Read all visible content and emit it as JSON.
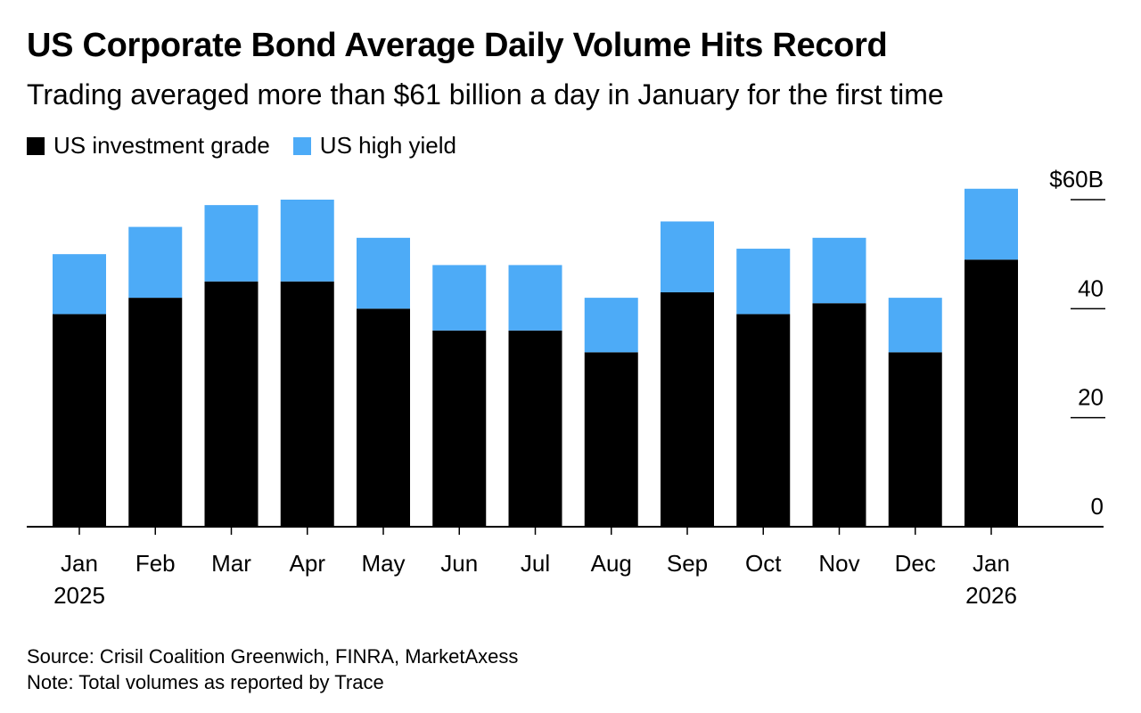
{
  "header": {
    "title": "US Corporate Bond Average Daily Volume Hits Record",
    "subtitle": "Trading averaged more than $61 billion a day in January for the first time"
  },
  "legend": [
    {
      "label": "US investment grade",
      "color": "#000000"
    },
    {
      "label": "US high yield",
      "color": "#4dabf7"
    }
  ],
  "chart_data": {
    "type": "bar",
    "stacked": true,
    "categories": [
      "Jan 2025",
      "Feb",
      "Mar",
      "Apr",
      "May",
      "Jun",
      "Jul",
      "Aug",
      "Sep",
      "Oct",
      "Nov",
      "Dec",
      "Jan 2026"
    ],
    "category_lines": [
      [
        "Jan",
        "2025"
      ],
      [
        "Feb"
      ],
      [
        "Mar"
      ],
      [
        "Apr"
      ],
      [
        "May"
      ],
      [
        "Jun"
      ],
      [
        "Jul"
      ],
      [
        "Aug"
      ],
      [
        "Sep"
      ],
      [
        "Oct"
      ],
      [
        "Nov"
      ],
      [
        "Dec"
      ],
      [
        "Jan",
        "2026"
      ]
    ],
    "series": [
      {
        "name": "US investment grade",
        "color": "#000000",
        "values": [
          39,
          42,
          45,
          45,
          40,
          36,
          36,
          32,
          43,
          39,
          41,
          32,
          49
        ]
      },
      {
        "name": "US high yield",
        "color": "#4dabf7",
        "values": [
          11,
          13,
          14,
          15,
          13,
          12,
          12,
          10,
          13,
          12,
          12,
          10,
          13
        ]
      }
    ],
    "ylim": [
      0,
      60
    ],
    "y_ticks": [
      {
        "value": 0,
        "label": "0"
      },
      {
        "value": 20,
        "label": "20"
      },
      {
        "value": 40,
        "label": "40"
      },
      {
        "value": 60,
        "label": "$60B"
      }
    ],
    "axis_position": "right",
    "grid": false,
    "legend_position": "top-left"
  },
  "footer": {
    "source": "Source: Crisil Coalition Greenwich, FINRA, MarketAxess",
    "note": "Note: Total volumes as reported by Trace"
  }
}
